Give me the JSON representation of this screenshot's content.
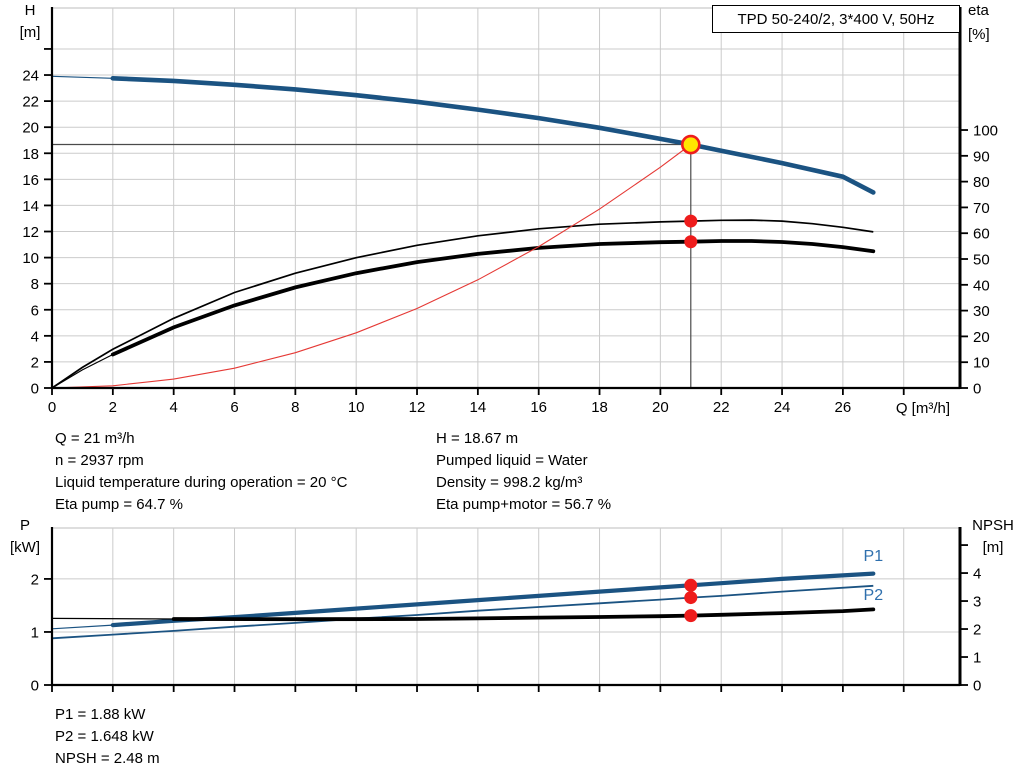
{
  "title_box": {
    "label": "TPD 50-240/2, 3*400 V, 50Hz"
  },
  "colors": {
    "curve_blue": "#1b5382",
    "label_blue": "#2e6fad",
    "black": "#000000",
    "red": "#e53935",
    "marker_red": "#ee1c1c",
    "duty_yellow": "#ffe600",
    "grid": "#cbcbcb",
    "guide": "#4a4a4a"
  },
  "info_top": {
    "col1": [
      "Q = 21 m³/h",
      "n = 2937 rpm",
      "Liquid temperature during operation = 20 °C",
      "Eta pump = 64.7 %"
    ],
    "col2": [
      "H = 18.67 m",
      "Pumped liquid = Water",
      "Density = 998.2 kg/m³",
      "Eta pump+motor = 56.7 %"
    ]
  },
  "info_bottom": [
    "P1 = 1.88 kW",
    "P2 = 1.648 kW",
    "NPSH = 2.48 m"
  ],
  "chart_data": [
    {
      "type": "line",
      "id": "qh",
      "title": "TPD 50-240/2, 3*400 V, 50Hz",
      "legend_position": "none",
      "grid": true,
      "axes": {
        "x": {
          "label": "Q [m³/h]",
          "min": 0,
          "max": 29.85,
          "tick_step": 2,
          "tick_max": 28,
          "label_max": 26
        },
        "y_left": {
          "label": [
            "H",
            "[m]"
          ],
          "min": 0,
          "max": 29.14,
          "tick_step": 2,
          "tick_max": 26,
          "label_max": 24
        },
        "y_right": {
          "label": [
            "eta",
            "[%]"
          ],
          "min": 0,
          "max": 147.3,
          "tick_step": 10,
          "tick_max": 100,
          "label_max": 100
        }
      },
      "series": [
        {
          "name": "head-curve",
          "axis": "left",
          "color": "curve_blue",
          "width": 4.6,
          "thin_until": 2,
          "points": [
            [
              0,
              23.9
            ],
            [
              2,
              23.75
            ],
            [
              4,
              23.55
            ],
            [
              6,
              23.25
            ],
            [
              8,
              22.9
            ],
            [
              10,
              22.45
            ],
            [
              12,
              21.95
            ],
            [
              14,
              21.35
            ],
            [
              16,
              20.7
            ],
            [
              18,
              19.95
            ],
            [
              20,
              19.1
            ],
            [
              21,
              18.67
            ],
            [
              22,
              18.2
            ],
            [
              24,
              17.25
            ],
            [
              26,
              16.2
            ],
            [
              27,
              15.0
            ]
          ]
        },
        {
          "name": "eta-pump-curve",
          "axis": "right",
          "color": "black",
          "width": 1.7,
          "points": [
            [
              0,
              0
            ],
            [
              1,
              8
            ],
            [
              2,
              15
            ],
            [
              4,
              27
            ],
            [
              6,
              37
            ],
            [
              8,
              44.5
            ],
            [
              10,
              50.5
            ],
            [
              12,
              55.3
            ],
            [
              14,
              59
            ],
            [
              16,
              61.7
            ],
            [
              18,
              63.5
            ],
            [
              20,
              64.4
            ],
            [
              21,
              64.7
            ],
            [
              22,
              65
            ],
            [
              23,
              65.1
            ],
            [
              24,
              64.7
            ],
            [
              25,
              63.7
            ],
            [
              26,
              62.3
            ],
            [
              27,
              60.5
            ]
          ]
        },
        {
          "name": "eta-pump-motor-curve",
          "axis": "right",
          "color": "black",
          "width": 3.8,
          "thin_until": 2,
          "points": [
            [
              0,
              0
            ],
            [
              1,
              7
            ],
            [
              2,
              13
            ],
            [
              4,
              23.5
            ],
            [
              6,
              32
            ],
            [
              8,
              39
            ],
            [
              10,
              44.5
            ],
            [
              12,
              48.8
            ],
            [
              14,
              52
            ],
            [
              16,
              54.3
            ],
            [
              18,
              55.8
            ],
            [
              20,
              56.5
            ],
            [
              21,
              56.7
            ],
            [
              22,
              57
            ],
            [
              23,
              57
            ],
            [
              24,
              56.6
            ],
            [
              25,
              55.8
            ],
            [
              26,
              54.6
            ],
            [
              27,
              53
            ]
          ]
        },
        {
          "name": "system-curve",
          "axis": "left",
          "color": "red",
          "width": 1.1,
          "points": [
            [
              0,
              0
            ],
            [
              2,
              0.17
            ],
            [
              4,
              0.68
            ],
            [
              6,
              1.52
            ],
            [
              8,
              2.71
            ],
            [
              10,
              4.23
            ],
            [
              12,
              6.1
            ],
            [
              14,
              8.3
            ],
            [
              16,
              10.84
            ],
            [
              18,
              13.72
            ],
            [
              20,
              16.93
            ],
            [
              21,
              18.67
            ]
          ]
        }
      ],
      "guides": {
        "q": 21,
        "h": 18.67
      },
      "markers": [
        {
          "type": "duty",
          "axis": "left",
          "x": 21,
          "y": 18.67
        },
        {
          "type": "dot",
          "axis": "right",
          "x": 21,
          "y": 64.7
        },
        {
          "type": "dot",
          "axis": "right",
          "x": 21,
          "y": 56.7
        }
      ],
      "annotations": []
    },
    {
      "type": "line",
      "id": "pq",
      "title": "",
      "legend_position": "inline",
      "grid": true,
      "axes": {
        "x": {
          "label": "",
          "min": 0,
          "max": 29.85,
          "tick_step": 2,
          "tick_max": 28,
          "label_max": -1
        },
        "y_left": {
          "label": [
            "P",
            "[kW]"
          ],
          "min": 0,
          "max": 2.96,
          "tick_step": 1,
          "tick_max": 2,
          "label_max": 2
        },
        "y_right": {
          "label": [
            "NPSH",
            "[m]"
          ],
          "min": 0,
          "max": 5.61,
          "tick_step": 1,
          "tick_max": 5,
          "label_max": 4
        }
      },
      "series": [
        {
          "name": "p1-curve",
          "axis": "left",
          "color": "curve_blue",
          "width": 4.2,
          "thin_until": 2,
          "points": [
            [
              0,
              1.06
            ],
            [
              2,
              1.13
            ],
            [
              4,
              1.21
            ],
            [
              6,
              1.28
            ],
            [
              8,
              1.36
            ],
            [
              10,
              1.44
            ],
            [
              12,
              1.52
            ],
            [
              14,
              1.6
            ],
            [
              16,
              1.68
            ],
            [
              18,
              1.76
            ],
            [
              20,
              1.84
            ],
            [
              21,
              1.88
            ],
            [
              22,
              1.92
            ],
            [
              24,
              2.0
            ],
            [
              27,
              2.1
            ]
          ]
        },
        {
          "name": "p2-curve",
          "axis": "left",
          "color": "curve_blue",
          "width": 1.8,
          "points": [
            [
              0,
              0.88
            ],
            [
              2,
              0.95
            ],
            [
              4,
              1.02
            ],
            [
              6,
              1.1
            ],
            [
              8,
              1.17
            ],
            [
              10,
              1.25
            ],
            [
              12,
              1.32
            ],
            [
              14,
              1.4
            ],
            [
              16,
              1.47
            ],
            [
              18,
              1.54
            ],
            [
              20,
              1.61
            ],
            [
              21,
              1.648
            ],
            [
              22,
              1.68
            ],
            [
              24,
              1.76
            ],
            [
              27,
              1.87
            ]
          ]
        },
        {
          "name": "npsh-curve",
          "axis": "right",
          "color": "black",
          "width": 3.8,
          "thin_until": 2,
          "points": [
            [
              0,
              2.38
            ],
            [
              4,
              2.36
            ],
            [
              8,
              2.35
            ],
            [
              12,
              2.36
            ],
            [
              14,
              2.38
            ],
            [
              16,
              2.41
            ],
            [
              18,
              2.43
            ],
            [
              20,
              2.46
            ],
            [
              21,
              2.48
            ],
            [
              22,
              2.51
            ],
            [
              24,
              2.57
            ],
            [
              26,
              2.64
            ],
            [
              27,
              2.7
            ]
          ]
        }
      ],
      "markers": [
        {
          "type": "dot",
          "axis": "left",
          "x": 21,
          "y": 1.88
        },
        {
          "type": "dot",
          "axis": "left",
          "x": 21,
          "y": 1.648
        },
        {
          "type": "dot",
          "axis": "right",
          "x": 21,
          "y": 2.48
        }
      ],
      "annotations": [
        {
          "text": "P1",
          "axis": "left",
          "x": 27.0,
          "y": 2.34
        },
        {
          "text": "P2",
          "axis": "left",
          "x": 27.0,
          "y": 1.6
        }
      ]
    }
  ]
}
